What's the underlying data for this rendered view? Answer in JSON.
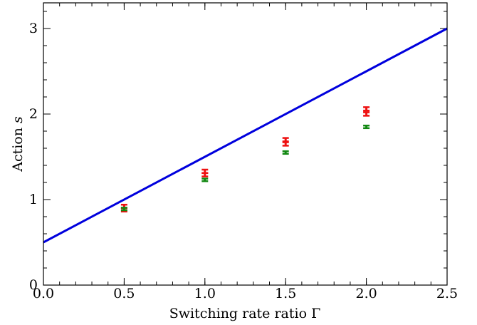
{
  "chart_data": {
    "type": "scatter",
    "xlabel": "Switching rate ratio Γ",
    "ylabel_prefix": "Action ",
    "ylabel_symbol": "s",
    "xlim": [
      0,
      2.5
    ],
    "ylim": [
      0,
      3.3
    ],
    "x_ticks": [
      "0.0",
      "0.5",
      "1.0",
      "1.5",
      "2.0",
      "2.5"
    ],
    "y_ticks": [
      "0",
      "1",
      "2",
      "3"
    ],
    "x_minor_step": 0.1,
    "y_minor_step": 0.2,
    "grid": false,
    "series": [
      {
        "kind": "line",
        "color": "#0000dd",
        "x": [
          0,
          2.5
        ],
        "y": [
          0.5,
          3.0
        ]
      },
      {
        "kind": "points",
        "color": "#ee1111",
        "points": [
          {
            "x": 0.5,
            "y": 0.92,
            "err": 0.02
          },
          {
            "x": 0.5,
            "y": 0.88,
            "err": 0.02
          },
          {
            "x": 1.0,
            "y": 1.33,
            "err": 0.02
          },
          {
            "x": 1.0,
            "y": 1.29,
            "err": 0.02
          },
          {
            "x": 1.5,
            "y": 1.7,
            "err": 0.02
          },
          {
            "x": 1.5,
            "y": 1.65,
            "err": 0.02
          },
          {
            "x": 2.0,
            "y": 2.06,
            "err": 0.02
          },
          {
            "x": 2.0,
            "y": 2.0,
            "err": 0.02
          }
        ]
      },
      {
        "kind": "points",
        "color": "#118811",
        "points": [
          {
            "x": 0.5,
            "y": 0.89,
            "err": 0.015
          },
          {
            "x": 1.0,
            "y": 1.23,
            "err": 0.015
          },
          {
            "x": 1.5,
            "y": 1.55,
            "err": 0.015
          },
          {
            "x": 2.0,
            "y": 1.85,
            "err": 0.015
          }
        ]
      }
    ]
  }
}
